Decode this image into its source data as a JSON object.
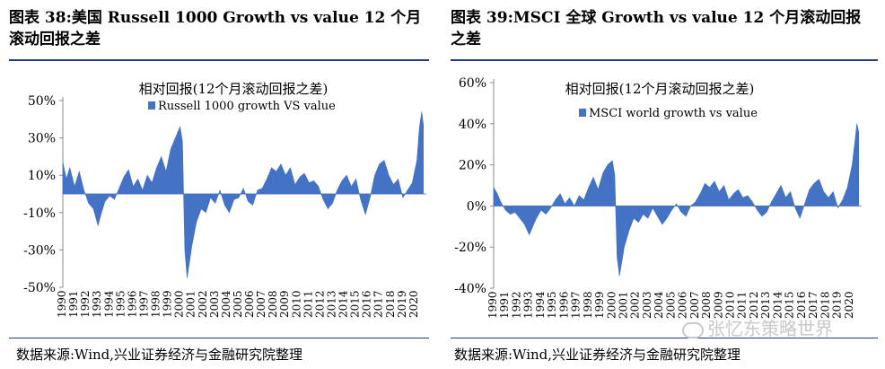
{
  "left_panel": {
    "title": "图表 38:美国 Russell 1000 Growth vs value 12 个月滚动回报之差",
    "source": "数据来源:Wind,兴业证券经济与金融研究院整理"
  },
  "right_panel": {
    "title": "图表 39:MSCI  全球 Growth vs value 12 个月滚动回报之差",
    "source": "数据来源:Wind,兴业证券经济与金融研究院整理"
  },
  "watermark": "张忆东策略世界",
  "chart_data": [
    {
      "type": "area",
      "title": "相对回报(12个月滚动回报之差)",
      "legend": "Russell 1000 growth VS value",
      "legend_position": "top-center",
      "color": "#4472c4",
      "ylim": [
        -50,
        50
      ],
      "yticks": [
        50,
        30,
        10,
        -10,
        -30,
        -50
      ],
      "ytick_labels": [
        "50%",
        "30%",
        "10%",
        "-10%",
        "-30%",
        "-50%"
      ],
      "xticks": [
        "1990",
        "1991",
        "1992",
        "1993",
        "1994",
        "1995",
        "1996",
        "1997",
        "1998",
        "1999",
        "2000",
        "2001",
        "2002",
        "2003",
        "2004",
        "2005",
        "2006",
        "2007",
        "2008",
        "2009",
        "2010",
        "2011",
        "2012",
        "2013",
        "2014",
        "2015",
        "2016",
        "2017",
        "2018",
        "2019",
        "2020"
      ],
      "x": [
        1990.0,
        1990.3,
        1990.6,
        1991.0,
        1991.4,
        1991.8,
        1992.2,
        1992.6,
        1993.0,
        1993.3,
        1993.6,
        1994.0,
        1994.4,
        1994.8,
        1995.2,
        1995.6,
        1996.0,
        1996.4,
        1996.8,
        1997.2,
        1997.6,
        1998.0,
        1998.4,
        1998.8,
        1999.2,
        1999.6,
        2000.0,
        2000.2,
        2000.4,
        2000.6,
        2001.0,
        2001.4,
        2001.8,
        2002.2,
        2002.6,
        2003.0,
        2003.4,
        2003.8,
        2004.2,
        2004.6,
        2005.0,
        2005.4,
        2005.8,
        2006.2,
        2006.6,
        2007.0,
        2007.4,
        2007.8,
        2008.2,
        2008.6,
        2009.0,
        2009.4,
        2009.8,
        2010.2,
        2010.6,
        2011.0,
        2011.4,
        2011.8,
        2012.2,
        2012.6,
        2013.0,
        2013.4,
        2013.8,
        2014.2,
        2014.6,
        2015.0,
        2015.4,
        2015.8,
        2016.2,
        2016.6,
        2017.0,
        2017.4,
        2017.8,
        2018.2,
        2018.6,
        2019.0,
        2019.4,
        2019.8,
        2020.2,
        2020.4,
        2020.6,
        2020.75
      ],
      "values": [
        17,
        8,
        14,
        4,
        12,
        2,
        -5,
        -8,
        -17,
        -10,
        -4,
        -1,
        -3,
        3,
        9,
        13,
        4,
        8,
        2,
        10,
        6,
        14,
        20,
        12,
        24,
        30,
        36,
        28,
        -30,
        -45,
        -28,
        -15,
        -8,
        -10,
        -2,
        -5,
        2,
        -6,
        -10,
        -3,
        -2,
        3,
        -4,
        -6,
        2,
        3,
        8,
        14,
        12,
        16,
        10,
        14,
        5,
        9,
        11,
        6,
        7,
        4,
        -3,
        -8,
        -5,
        2,
        7,
        10,
        4,
        8,
        -3,
        -11,
        -2,
        10,
        16,
        18,
        10,
        5,
        8,
        -2,
        2,
        6,
        18,
        35,
        44,
        37
      ]
    },
    {
      "type": "area",
      "title": "相对回报(12个月滚动回报之差)",
      "legend": "MSCI world growth vs value",
      "legend_position": "top-center",
      "color": "#4472c4",
      "ylim": [
        -40,
        60
      ],
      "yticks": [
        60,
        40,
        20,
        0,
        -20,
        -40
      ],
      "ytick_labels": [
        "60%",
        "40%",
        "20%",
        "0%",
        "-20%",
        "-40%"
      ],
      "xticks": [
        "1990",
        "1991",
        "1992",
        "1993",
        "1994",
        "1995",
        "1996",
        "1997",
        "1998",
        "1999",
        "2000",
        "2001",
        "2002",
        "2003",
        "2004",
        "2005",
        "2006",
        "2007",
        "2008",
        "2009",
        "2010",
        "2011",
        "2012",
        "2013",
        "2014",
        "2015",
        "2016",
        "2017",
        "2018",
        "2019",
        "2020"
      ],
      "x": [
        1990.0,
        1990.3,
        1990.6,
        1991.0,
        1991.4,
        1991.8,
        1992.2,
        1992.6,
        1993.0,
        1993.3,
        1993.6,
        1994.0,
        1994.4,
        1994.8,
        1995.2,
        1995.6,
        1996.0,
        1996.4,
        1996.8,
        1997.2,
        1997.6,
        1998.0,
        1998.4,
        1998.8,
        1999.2,
        1999.6,
        2000.0,
        2000.2,
        2000.4,
        2000.6,
        2001.0,
        2001.4,
        2001.8,
        2002.2,
        2002.6,
        2003.0,
        2003.4,
        2003.8,
        2004.2,
        2004.6,
        2005.0,
        2005.4,
        2005.8,
        2006.2,
        2006.6,
        2007.0,
        2007.4,
        2007.8,
        2008.2,
        2008.6,
        2009.0,
        2009.4,
        2009.8,
        2010.2,
        2010.6,
        2011.0,
        2011.4,
        2011.8,
        2012.2,
        2012.6,
        2013.0,
        2013.4,
        2013.8,
        2014.2,
        2014.6,
        2015.0,
        2015.4,
        2015.8,
        2016.2,
        2016.6,
        2017.0,
        2017.4,
        2017.8,
        2018.2,
        2018.6,
        2019.0,
        2019.4,
        2019.8,
        2020.2,
        2020.4,
        2020.6,
        2020.75
      ],
      "values": [
        9,
        6,
        2,
        -2,
        -4,
        -3,
        -6,
        -9,
        -14,
        -10,
        -6,
        -2,
        -4,
        -1,
        3,
        6,
        1,
        4,
        0,
        5,
        3,
        9,
        14,
        8,
        16,
        20,
        22,
        15,
        -25,
        -34,
        -20,
        -12,
        -6,
        -8,
        -4,
        -6,
        -1,
        -5,
        -9,
        -6,
        -2,
        1,
        -3,
        -5,
        0,
        2,
        6,
        11,
        9,
        12,
        7,
        10,
        3,
        6,
        8,
        4,
        5,
        2,
        -2,
        -5,
        -3,
        2,
        6,
        10,
        4,
        7,
        -1,
        -6,
        1,
        8,
        11,
        13,
        7,
        4,
        7,
        -1,
        3,
        9,
        20,
        30,
        40,
        36
      ]
    }
  ]
}
